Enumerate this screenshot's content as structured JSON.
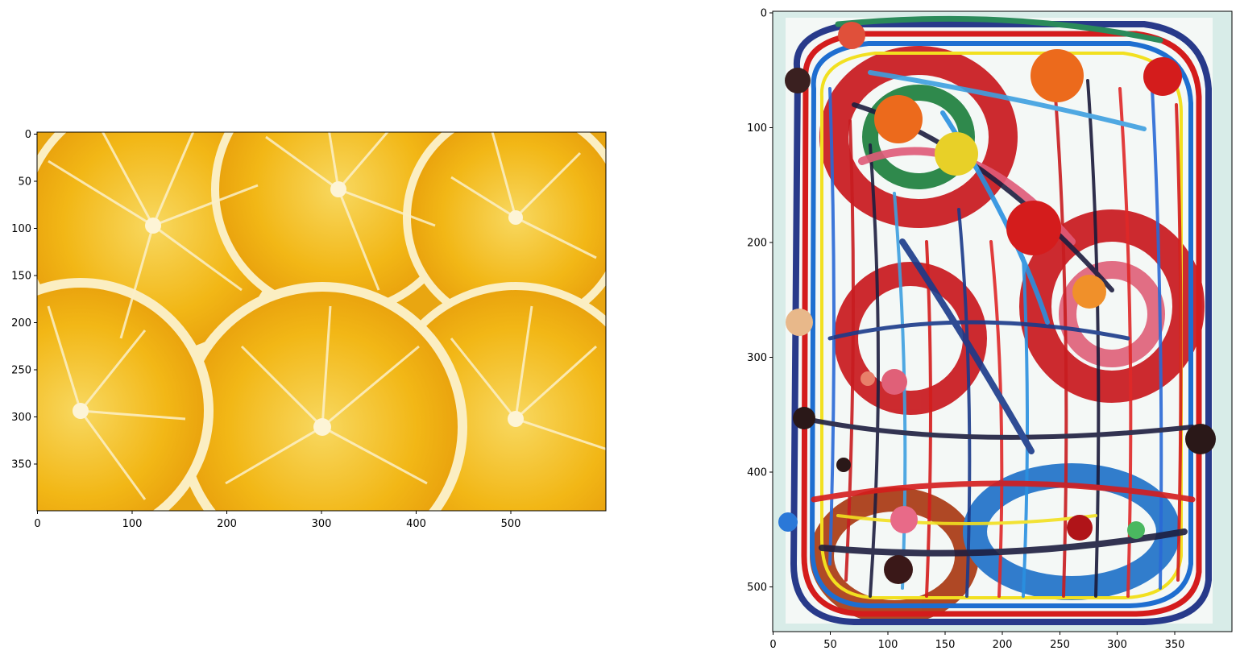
{
  "figure": {
    "panels": [
      {
        "name": "orange-slices-image",
        "image_width": 600,
        "image_height": 400,
        "x_ticks": [
          "0",
          "100",
          "200",
          "300",
          "400",
          "500"
        ],
        "y_ticks": [
          "0",
          "50",
          "100",
          "150",
          "200",
          "250",
          "300",
          "350"
        ],
        "description": "Close-up photo of bright yellow-orange citrus (orange) slices"
      },
      {
        "name": "abstract-painting-image",
        "image_width": 400,
        "image_height": 540,
        "x_ticks": [
          "0",
          "50",
          "100",
          "150",
          "200",
          "250",
          "300",
          "350"
        ],
        "y_ticks": [
          "0",
          "100",
          "200",
          "300",
          "400",
          "500"
        ],
        "description": "Abstract painting with dense multicolored paint strokes and splatters on pale background"
      }
    ]
  },
  "colors": {
    "orange_bg": "#f0b21a",
    "orange_rind": "#f7e6a8",
    "orange_pith": "#fbf0c6",
    "painting_bg": "#d6ece8"
  }
}
